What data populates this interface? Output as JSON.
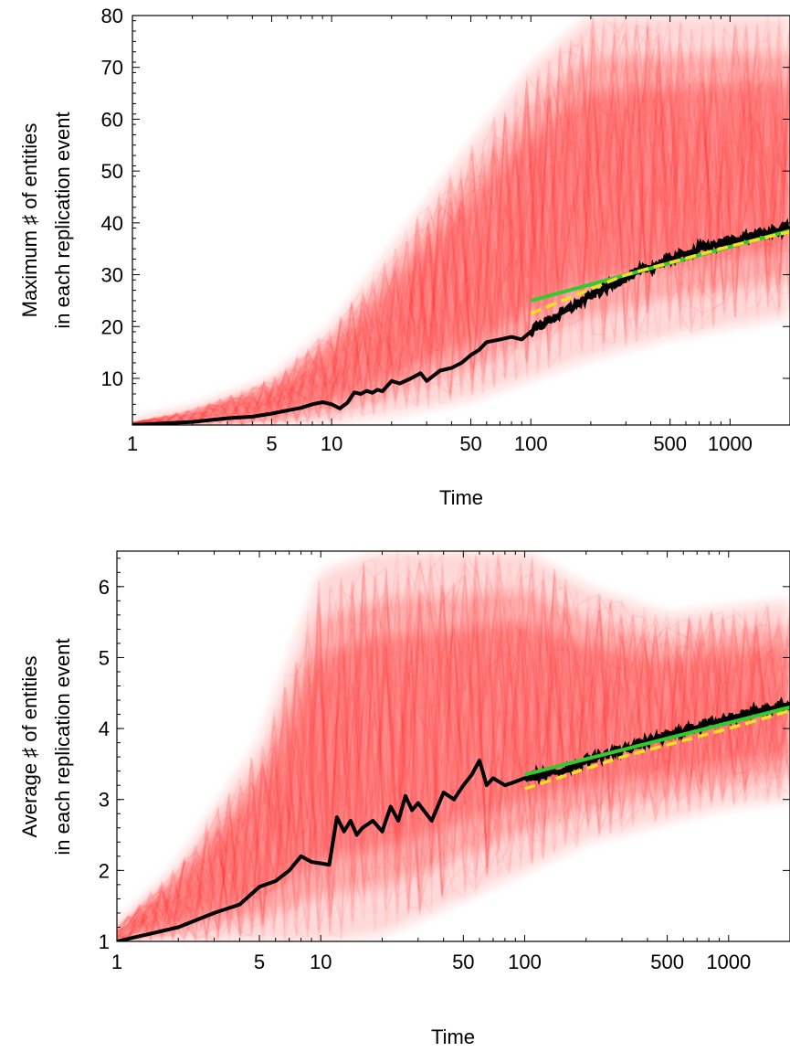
{
  "colors": {
    "background": "#ffffff",
    "cloud": "#ff2a2a",
    "mean_line": "#000000",
    "fit_green": "#2ecc2e",
    "fit_yellow": "#f0e020"
  },
  "chart_data": [
    {
      "type": "line",
      "x_scale": "log",
      "xlabel": "Time",
      "ylabel_lines": [
        "Maximum ♯ of entities",
        "in each replication event"
      ],
      "xlim": [
        1,
        2000
      ],
      "ylim": [
        1,
        80
      ],
      "x_ticks": [
        1,
        5,
        10,
        50,
        100,
        500,
        1000
      ],
      "x_tick_labels": [
        "1",
        "5",
        "10",
        "50",
        "100",
        "500",
        "1000"
      ],
      "y_ticks": [
        10,
        20,
        30,
        40,
        50,
        60,
        70,
        80
      ],
      "y_tick_labels": [
        "10",
        "20",
        "30",
        "40",
        "50",
        "60",
        "70",
        "80"
      ],
      "mean_series": {
        "x": [
          1,
          2,
          3,
          4,
          5,
          6,
          7,
          8,
          9,
          10,
          11,
          12,
          13,
          14,
          15,
          16,
          17,
          18,
          20,
          22,
          25,
          28,
          30,
          35,
          40,
          45,
          50,
          55,
          60,
          70,
          80,
          90,
          100,
          120,
          150,
          200,
          300,
          500,
          700,
          1000,
          1500,
          2000
        ],
        "y": [
          1,
          1.6,
          2.3,
          2.6,
          3.2,
          3.8,
          4.3,
          5.0,
          5.4,
          5.0,
          4.2,
          5.3,
          7.3,
          7.0,
          7.6,
          7.2,
          7.8,
          7.5,
          9.5,
          9.0,
          10.0,
          11.0,
          9.5,
          11.5,
          12.0,
          13.0,
          14.5,
          15.5,
          17.0,
          17.5,
          18.0,
          17.5,
          19.0,
          21.0,
          23.0,
          26.0,
          29.5,
          33.0,
          35.0,
          36.5,
          38.0,
          39.0
        ]
      },
      "cloud_band": {
        "x": [
          1,
          2,
          5,
          10,
          20,
          50,
          100,
          200,
          500,
          1000,
          2000
        ],
        "lower": [
          1,
          1,
          1,
          1.5,
          3,
          6,
          10,
          14,
          18,
          20,
          22
        ],
        "upper": [
          1.5,
          4,
          10,
          20,
          35,
          55,
          70,
          80,
          80,
          80,
          80
        ]
      },
      "fit_green": {
        "x": [
          100,
          2000
        ],
        "y": [
          25.0,
          38.5
        ]
      },
      "fit_yellow": {
        "x": [
          100,
          300,
          1000,
          2000
        ],
        "y": [
          22.5,
          30.0,
          35.5,
          38.3
        ]
      }
    },
    {
      "type": "line",
      "x_scale": "log",
      "xlabel": "Time",
      "ylabel_lines": [
        "Average ♯ of entities",
        "in each replication event"
      ],
      "xlim": [
        1,
        2000
      ],
      "ylim": [
        1,
        6.5
      ],
      "x_ticks": [
        1,
        5,
        10,
        50,
        100,
        500,
        1000
      ],
      "x_tick_labels": [
        "1",
        "5",
        "10",
        "50",
        "100",
        "500",
        "1000"
      ],
      "y_ticks": [
        1,
        2,
        3,
        4,
        5,
        6
      ],
      "y_tick_labels": [
        "1",
        "2",
        "3",
        "4",
        "5",
        "6"
      ],
      "mean_series": {
        "x": [
          1,
          2,
          3,
          4,
          5,
          6,
          7,
          8,
          9,
          10,
          11,
          12,
          13,
          14,
          15,
          16,
          18,
          20,
          22,
          24,
          26,
          28,
          30,
          35,
          40,
          45,
          50,
          55,
          60,
          65,
          70,
          80,
          90,
          100,
          150,
          200,
          300,
          500,
          1000,
          2000
        ],
        "y": [
          1.0,
          1.2,
          1.4,
          1.52,
          1.77,
          1.85,
          2.0,
          2.2,
          2.12,
          2.1,
          2.08,
          2.75,
          2.55,
          2.7,
          2.5,
          2.6,
          2.7,
          2.55,
          2.9,
          2.7,
          3.05,
          2.85,
          2.95,
          2.7,
          3.1,
          3.0,
          3.2,
          3.35,
          3.55,
          3.2,
          3.3,
          3.2,
          3.25,
          3.3,
          3.4,
          3.55,
          3.7,
          3.9,
          4.15,
          4.35
        ]
      },
      "cloud_band": {
        "x": [
          1,
          2,
          5,
          10,
          20,
          50,
          100,
          200,
          500,
          1000,
          2000
        ],
        "lower": [
          1,
          1,
          1,
          1,
          1.1,
          1.6,
          2.0,
          2.4,
          2.7,
          2.9,
          3.0
        ],
        "upper": [
          1.2,
          2.1,
          3.8,
          6.2,
          6.5,
          6.5,
          6.5,
          6.0,
          5.6,
          5.7,
          5.8
        ]
      },
      "fit_green": {
        "x": [
          100,
          2000
        ],
        "y": [
          3.35,
          4.3
        ]
      },
      "fit_yellow": {
        "x": [
          100,
          300,
          1000,
          2000
        ],
        "y": [
          3.15,
          3.6,
          4.0,
          4.25
        ]
      }
    }
  ]
}
